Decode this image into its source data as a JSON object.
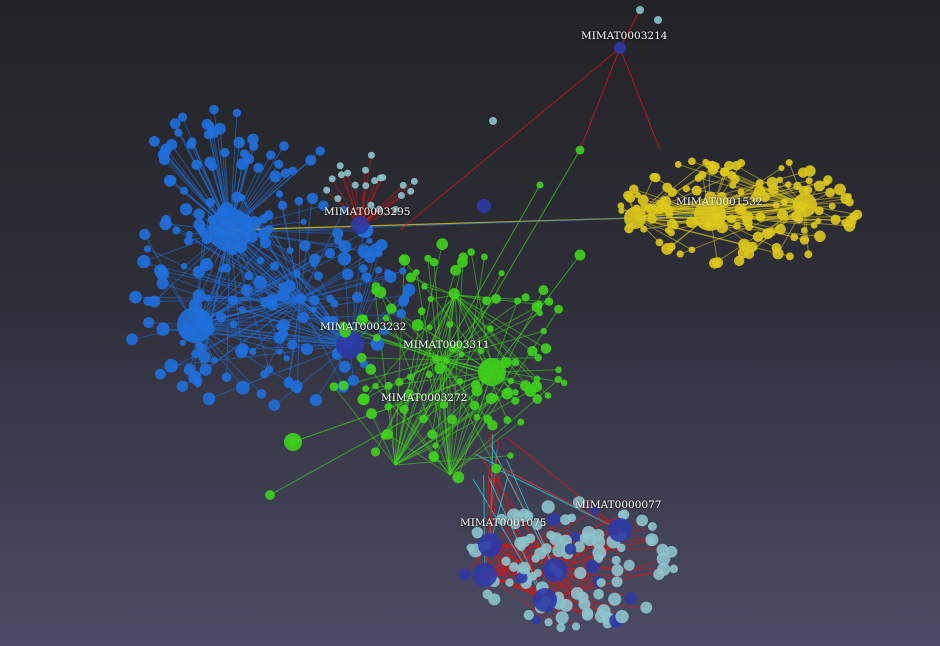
{
  "graph": {
    "type": "3d-network",
    "colors": {
      "blue_cluster": "#1f6fdc",
      "green_cluster": "#3fd11c",
      "yellow_cluster": "#dcc81c",
      "red_edges": "#e01414",
      "cyan_nodes": "#8cc3cc",
      "dark_blue_nodes": "#2c3aa6",
      "cyan_edges": "#27c9d6"
    },
    "labels": [
      "MIMAT0003214",
      "MIMAT0003295",
      "MIMAT0001532",
      "MIMAT0003232",
      "MIMAT0003311",
      "MIMAT0003272",
      "MIMAT0001075",
      "MIMAT0000077"
    ]
  }
}
